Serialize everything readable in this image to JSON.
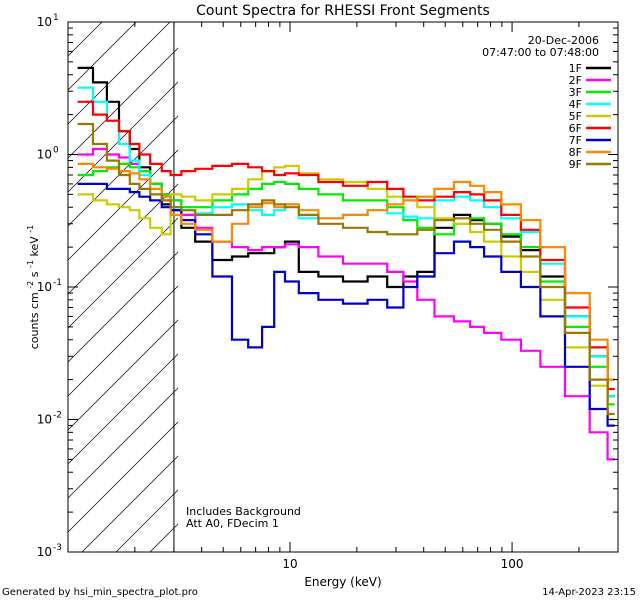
{
  "chart_data": {
    "type": "line",
    "title": "Count Spectra for RHESSI Front Segments",
    "xlabel": "Energy (keV)",
    "ylabel_main": "counts cm",
    "ylabel_exp1": "-2",
    "ylabel_mid": " s",
    "ylabel_exp2": "-1",
    "ylabel_end": " keV",
    "ylabel_exp3": "-1",
    "x_scale": "log",
    "y_scale": "log",
    "xlim": [
      1.0,
      300.0
    ],
    "ylim": [
      0.001,
      10.0
    ],
    "x_ticks": [
      {
        "value": 10,
        "label": "10"
      },
      {
        "value": 100,
        "label": "100"
      }
    ],
    "y_ticks": [
      {
        "value": 0.001,
        "base": "10",
        "exp": "-3"
      },
      {
        "value": 0.01,
        "base": "10",
        "exp": "-2"
      },
      {
        "value": 0.1,
        "base": "10",
        "exp": "-1"
      },
      {
        "value": 1,
        "base": "10",
        "exp": "0"
      },
      {
        "value": 10,
        "base": "10",
        "exp": "1"
      }
    ],
    "date": "20-Dec-2006",
    "time_range": "07:47:00 to 07:48:00",
    "annotation_1": "Includes Background",
    "annotation_2": "Att A0, FDecim 1",
    "footer_left": "Generated by hsi_min_spectra_plot.pro",
    "footer_right": "14-Apr-2023 23:15",
    "hatched_region": [
      1.0,
      3.0
    ],
    "series": [
      {
        "name": "1F",
        "color": "#000000",
        "x": [
          1.2,
          1.4,
          1.6,
          1.8,
          2.0,
          2.2,
          2.5,
          2.8,
          3.0,
          3.5,
          4.0,
          5.0,
          6.0,
          7.0,
          8.0,
          9.0,
          10,
          12,
          15,
          20,
          25,
          30,
          35,
          40,
          50,
          60,
          70,
          80,
          100,
          120,
          150,
          200,
          250,
          290
        ],
        "values": [
          4.5,
          3.5,
          2.5,
          1.5,
          1.1,
          0.8,
          0.6,
          0.42,
          0.38,
          0.28,
          0.22,
          0.16,
          0.17,
          0.18,
          0.18,
          0.2,
          0.22,
          0.13,
          0.12,
          0.11,
          0.12,
          0.1,
          0.12,
          0.13,
          0.28,
          0.35,
          0.32,
          0.3,
          0.24,
          0.19,
          0.12,
          0.06,
          0.03,
          0.015
        ]
      },
      {
        "name": "2F",
        "color": "#ff00ff",
        "x": [
          1.2,
          1.4,
          1.6,
          1.8,
          2.0,
          2.2,
          2.5,
          2.8,
          3.0,
          3.5,
          4.0,
          5.0,
          6.0,
          7.0,
          8.0,
          9.0,
          10,
          12,
          15,
          20,
          25,
          30,
          35,
          40,
          50,
          60,
          70,
          80,
          100,
          120,
          150,
          200,
          250,
          290
        ],
        "values": [
          1.0,
          1.1,
          1.0,
          0.95,
          0.85,
          0.75,
          0.6,
          0.5,
          0.45,
          0.35,
          0.28,
          0.22,
          0.2,
          0.19,
          0.2,
          0.2,
          0.21,
          0.2,
          0.17,
          0.15,
          0.15,
          0.13,
          0.11,
          0.08,
          0.06,
          0.055,
          0.05,
          0.045,
          0.04,
          0.033,
          0.025,
          0.015,
          0.008,
          0.005
        ]
      },
      {
        "name": "3F",
        "color": "#00ee00",
        "x": [
          1.2,
          1.4,
          1.6,
          1.8,
          2.0,
          2.2,
          2.5,
          2.8,
          3.0,
          3.5,
          4.0,
          5.0,
          6.0,
          7.0,
          8.0,
          9.0,
          10,
          12,
          15,
          20,
          25,
          30,
          35,
          40,
          50,
          60,
          70,
          80,
          100,
          120,
          150,
          200,
          250,
          290
        ],
        "values": [
          0.7,
          0.75,
          0.8,
          0.85,
          0.8,
          0.75,
          0.6,
          0.5,
          0.45,
          0.4,
          0.4,
          0.45,
          0.5,
          0.55,
          0.6,
          0.62,
          0.6,
          0.55,
          0.5,
          0.45,
          0.45,
          0.4,
          0.32,
          0.28,
          0.25,
          0.3,
          0.33,
          0.3,
          0.25,
          0.2,
          0.11,
          0.05,
          0.025,
          0.013
        ]
      },
      {
        "name": "4F",
        "color": "#00ffff",
        "x": [
          1.2,
          1.4,
          1.6,
          1.8,
          2.0,
          2.2,
          2.5,
          2.8,
          3.0,
          3.5,
          4.0,
          5.0,
          6.0,
          7.0,
          8.0,
          9.0,
          10,
          12,
          15,
          20,
          25,
          30,
          35,
          40,
          50,
          60,
          70,
          80,
          100,
          120,
          150,
          200,
          250,
          290
        ],
        "values": [
          3.2,
          2.5,
          1.8,
          1.2,
          0.9,
          0.7,
          0.55,
          0.45,
          0.4,
          0.38,
          0.36,
          0.4,
          0.42,
          0.38,
          0.35,
          0.38,
          0.42,
          0.33,
          0.33,
          0.35,
          0.38,
          0.36,
          0.34,
          0.33,
          0.45,
          0.48,
          0.45,
          0.4,
          0.33,
          0.26,
          0.15,
          0.06,
          0.03,
          0.015
        ]
      },
      {
        "name": "5F",
        "color": "#cccc00",
        "x": [
          1.2,
          1.4,
          1.6,
          1.8,
          2.0,
          2.2,
          2.5,
          2.8,
          3.0,
          3.5,
          4.0,
          5.0,
          6.0,
          7.0,
          8.0,
          9.0,
          10,
          12,
          15,
          20,
          25,
          30,
          35,
          40,
          50,
          60,
          70,
          80,
          100,
          120,
          150,
          200,
          250,
          290
        ],
        "values": [
          0.5,
          0.45,
          0.42,
          0.4,
          0.38,
          0.33,
          0.28,
          0.25,
          0.5,
          0.48,
          0.45,
          0.5,
          0.55,
          0.65,
          0.75,
          0.8,
          0.82,
          0.72,
          0.65,
          0.62,
          0.55,
          0.48,
          0.45,
          0.4,
          0.33,
          0.3,
          0.26,
          0.22,
          0.17,
          0.13,
          0.08,
          0.035,
          0.018,
          0.01
        ]
      },
      {
        "name": "6F",
        "color": "#ff0000",
        "x": [
          1.2,
          1.4,
          1.6,
          1.8,
          2.0,
          2.2,
          2.5,
          2.8,
          3.0,
          3.5,
          4.0,
          5.0,
          6.0,
          7.0,
          8.0,
          9.0,
          10,
          12,
          15,
          20,
          25,
          30,
          35,
          40,
          50,
          60,
          70,
          80,
          100,
          120,
          150,
          200,
          250,
          290
        ],
        "values": [
          2.5,
          2.0,
          1.8,
          1.5,
          1.2,
          1.0,
          0.85,
          0.75,
          0.7,
          0.75,
          0.78,
          0.82,
          0.85,
          0.8,
          0.75,
          0.7,
          0.72,
          0.7,
          0.62,
          0.58,
          0.62,
          0.55,
          0.48,
          0.45,
          0.48,
          0.52,
          0.5,
          0.45,
          0.35,
          0.27,
          0.16,
          0.07,
          0.035,
          0.017
        ]
      },
      {
        "name": "7F",
        "color": "#0000cc",
        "x": [
          1.2,
          1.4,
          1.6,
          1.8,
          2.0,
          2.2,
          2.5,
          2.8,
          3.0,
          3.5,
          4.0,
          5.0,
          6.0,
          7.0,
          8.0,
          9.0,
          10,
          12,
          15,
          20,
          25,
          30,
          35,
          40,
          50,
          60,
          70,
          80,
          100,
          120,
          150,
          200,
          250,
          290
        ],
        "values": [
          0.6,
          0.6,
          0.55,
          0.55,
          0.52,
          0.48,
          0.45,
          0.4,
          0.38,
          0.32,
          0.25,
          0.12,
          0.04,
          0.035,
          0.05,
          0.13,
          0.11,
          0.09,
          0.08,
          0.075,
          0.08,
          0.07,
          0.1,
          0.12,
          0.18,
          0.22,
          0.2,
          0.17,
          0.13,
          0.1,
          0.06,
          0.025,
          0.012,
          0.009
        ]
      },
      {
        "name": "8F",
        "color": "#ff8800",
        "x": [
          1.2,
          1.4,
          1.6,
          1.8,
          2.0,
          2.2,
          2.5,
          2.8,
          3.0,
          3.5,
          4.0,
          5.0,
          6.0,
          7.0,
          8.0,
          9.0,
          10,
          12,
          15,
          20,
          25,
          30,
          35,
          40,
          50,
          60,
          70,
          80,
          100,
          120,
          150,
          200,
          250,
          290
        ],
        "values": [
          0.85,
          0.8,
          0.78,
          0.75,
          0.72,
          0.65,
          0.55,
          0.48,
          0.35,
          0.3,
          0.27,
          0.22,
          0.3,
          0.4,
          0.43,
          0.4,
          0.42,
          0.38,
          0.33,
          0.35,
          0.38,
          0.42,
          0.45,
          0.48,
          0.55,
          0.62,
          0.58,
          0.52,
          0.42,
          0.32,
          0.2,
          0.09,
          0.04,
          0.02
        ]
      },
      {
        "name": "9F",
        "color": "#997700",
        "x": [
          1.2,
          1.4,
          1.6,
          1.8,
          2.0,
          2.2,
          2.5,
          2.8,
          3.0,
          3.5,
          4.0,
          5.0,
          6.0,
          7.0,
          8.0,
          9.0,
          10,
          12,
          15,
          20,
          25,
          30,
          35,
          40,
          50,
          60,
          70,
          80,
          100,
          120,
          150,
          200,
          250,
          290
        ],
        "values": [
          1.7,
          1.2,
          0.9,
          0.7,
          0.6,
          0.55,
          0.5,
          0.45,
          0.4,
          0.38,
          0.35,
          0.35,
          0.38,
          0.42,
          0.45,
          0.42,
          0.4,
          0.35,
          0.3,
          0.28,
          0.26,
          0.25,
          0.25,
          0.27,
          0.32,
          0.33,
          0.3,
          0.27,
          0.22,
          0.17,
          0.1,
          0.045,
          0.02,
          0.011
        ]
      }
    ]
  }
}
